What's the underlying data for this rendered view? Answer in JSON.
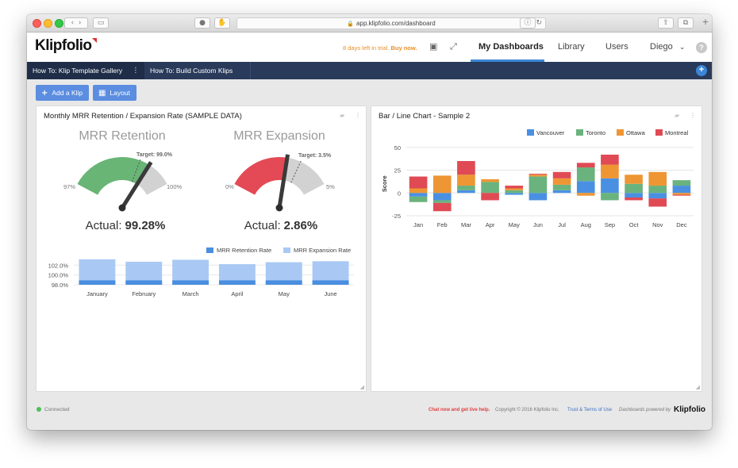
{
  "browser": {
    "url": "app.klipfolio.com/dashboard"
  },
  "header": {
    "logo": "Klipfolio",
    "trial_text": "8 days left in trial.",
    "buy_now": "Buy now.",
    "nav": [
      "My Dashboards",
      "Library",
      "Users"
    ],
    "user": "Diego",
    "help": "?"
  },
  "tabs": [
    {
      "label": "How To: Klip Template Gallery"
    },
    {
      "label": "How To: Build Custom Klips"
    }
  ],
  "toolbar": {
    "add_klip": "Add a Klip",
    "layout": "Layout"
  },
  "left_panel": {
    "title": "Monthly MRR Retention / Expansion Rate (SAMPLE DATA)",
    "gauges": [
      {
        "title": "MRR Retention",
        "min_label": "97%",
        "max_label": "100%",
        "min": 97,
        "max": 100,
        "target_label": "Target: 99.0%",
        "target": 99.0,
        "actual_label": "Actual:",
        "actual": 99.28,
        "actual_text": "99.28%",
        "color": "#69b576"
      },
      {
        "title": "MRR Expansion",
        "min_label": "0%",
        "max_label": "5%",
        "min": 0,
        "max": 5,
        "target_label": "Target: 3.5%",
        "target": 3.5,
        "actual_label": "Actual:",
        "actual": 2.86,
        "actual_text": "2.86%",
        "color": "#e34a55"
      }
    ],
    "legend": [
      "MRR Retention Rate",
      "MRR Expansion Rate"
    ],
    "legend_colors": [
      "#4a8ee0",
      "#a9c9f4"
    ],
    "y_ticks": [
      "102.0%",
      "100.0%",
      "98.0%"
    ]
  },
  "right_panel": {
    "title": "Bar / Line Chart - Sample 2",
    "ylabel": "Score",
    "y_ticks": [
      "50",
      "25",
      "0",
      "-25"
    ]
  },
  "chart_data": [
    {
      "type": "bar",
      "categories": [
        "January",
        "February",
        "March",
        "April",
        "May",
        "June"
      ],
      "series": [
        {
          "name": "MRR Retention Rate",
          "values": [
            98.9,
            98.9,
            98.9,
            98.9,
            98.9,
            98.9
          ]
        },
        {
          "name": "MRR Expansion Rate",
          "values": [
            103.2,
            102.7,
            103.1,
            102.2,
            102.6,
            102.8
          ]
        }
      ],
      "ylim": [
        98.0,
        103.5
      ],
      "color_series": [
        "#4a8ee0",
        "#a9c9f4"
      ]
    },
    {
      "type": "bar",
      "title": "Bar / Line Chart - Sample 2",
      "ylabel": "Score",
      "categories": [
        "Jan",
        "Feb",
        "Mar",
        "Apr",
        "May",
        "Jun",
        "Jul",
        "Aug",
        "Sep",
        "Oct",
        "Nov",
        "Dec"
      ],
      "series": [
        {
          "name": "Vancouver",
          "values": [
            -4,
            -8,
            3,
            0,
            -2,
            -8,
            3,
            13,
            16,
            -5,
            -6,
            8
          ]
        },
        {
          "name": "Toronto",
          "values": [
            -6,
            -3,
            5,
            12,
            3,
            18,
            6,
            15,
            -8,
            10,
            8,
            6
          ]
        },
        {
          "name": "Ottawa",
          "values": [
            5,
            19,
            12,
            3,
            2,
            2,
            7,
            -3,
            15,
            10,
            15,
            -2
          ]
        },
        {
          "name": "Montreal",
          "values": [
            13,
            -9,
            15,
            -8,
            3,
            1,
            7,
            5,
            11,
            -3,
            -9,
            -1
          ]
        }
      ],
      "ylim": [
        -25,
        55
      ],
      "grid": true,
      "legend": "top",
      "color_series": [
        "#4a90e2",
        "#6ab37e",
        "#ee9633",
        "#e04a54"
      ]
    }
  ],
  "footer": {
    "connected": "Connected",
    "chat": "Chat now and get live help.",
    "copyright": "Copyright © 2016 Klipfolio Inc.",
    "terms": "Trust & Terms of Use",
    "powered": "Dashboards powered by",
    "logo": "Klipfolio"
  }
}
